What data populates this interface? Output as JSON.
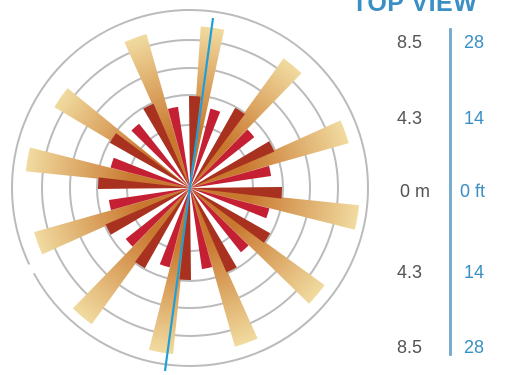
{
  "view_title": "TOP VIEW",
  "scale": {
    "left_labels": [
      "8.5",
      "4.3",
      "0 m",
      "4.3",
      "8.5"
    ],
    "right_labels": [
      "28",
      "14",
      "0 ft",
      "14",
      "28"
    ]
  },
  "colors": {
    "ring": "#bbbbbb",
    "inner_petal_dark": "#a8321f",
    "inner_petal_red": "#c41f33",
    "outer_petal_light": "#f1dba0",
    "outer_petal_dark": "#c9782f",
    "axis_line": "#1f9fd8",
    "scale_bar": "#7aaccf",
    "text_gray": "#555555",
    "text_blue": "#3a8fc4"
  }
}
